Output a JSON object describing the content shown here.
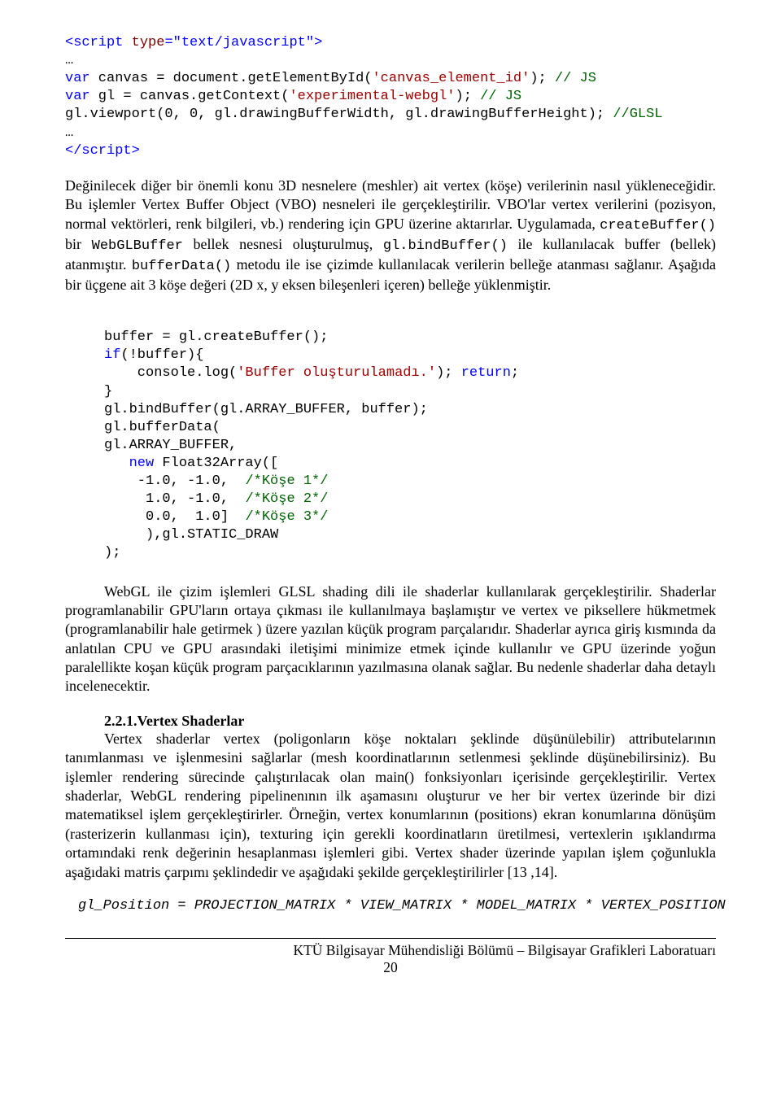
{
  "code1": {
    "l1a": "<script",
    "l1b": " type",
    "l1c": "=",
    "l1d": "\"text/javascript\"",
    "l1e": ">",
    "l2": "…",
    "l3a": "var",
    "l3b": " canvas = document.getElementById(",
    "l3c": "'canvas_element_id'",
    "l3d": "); ",
    "l3e": "// JS",
    "l4a": "var",
    "l4b": " gl = canvas.getContext(",
    "l4c": "'experimental-webgl'",
    "l4d": "); ",
    "l4e": "// JS",
    "l5a": "gl.viewport(0, 0, gl.drawingBufferWidth, gl.drawingBufferHeight); ",
    "l5b": "//GLSL",
    "l6": "…",
    "l7a": "</script",
    "l7b": ">"
  },
  "para1": {
    "pre": "        Değinilecek diğer bir önemli konu 3D nesnelere (meshler) ait vertex (köşe) verilerinin nasıl yükleneceğidir. Bu işlemler Vertex Buffer Object (VBO) nesneleri ile gerçekleştirilir. VBO'lar vertex verilerini (pozisyon, normal vektörleri, renk bilgileri, vb.) rendering için GPU üzerine aktarırlar. Uygulamada, ",
    "m1": "createBuffer()",
    "mid1": " bir ",
    "m2": "WebGLBuffer",
    "mid2": " bellek nesnesi oluşturulmuş, ",
    "m3": "gl.bindBuffer()",
    "mid3": " ile kullanılacak buffer (bellek)  atanmıştır. ",
    "m4": "bufferData()",
    "post": " metodu ile ise çizimde kullanılacak verilerin belleğe atanması sağlanır. Aşağıda bir üçgene ait 3 köşe değeri (2D x, y eksen bileşenleri içeren) belleğe yüklenmiştir."
  },
  "code2": {
    "l1": "buffer = gl.createBuffer();",
    "l2a": "if",
    "l2b": "(!buffer){",
    "l3a": "    console.log(",
    "l3b": "'Buffer oluşturulamadı.'",
    "l3c": "); ",
    "l3d": "return",
    "l3e": ";",
    "l4": "}",
    "l5": "gl.bindBuffer(gl.ARRAY_BUFFER, buffer);",
    "l6": "gl.bufferData(",
    "l7": "gl.ARRAY_BUFFER,",
    "l8a": "   new",
    "l8b": " Float32Array([",
    "l9a": "    -1.0, -1.0,  ",
    "l9b": "/*Köşe 1*/",
    "l10a": "     1.0, -1.0,  ",
    "l10b": "/*Köşe 2*/",
    "l11a": "     0.0,  1.0]  ",
    "l11b": "/*Köşe 3*/",
    "l12": "     ),gl.STATIC_DRAW",
    "l13": ");"
  },
  "para2": "WebGL ile çizim işlemleri GLSL shading dili ile shaderlar kullanılarak gerçekleştirilir. Shaderlar programlanabilir GPU'ların ortaya çıkması ile kullanılmaya başlamıştır ve vertex ve piksellere hükmetmek (programlanabilir hale getirmek ) üzere yazılan küçük program parçalarıdır. Shaderlar ayrıca giriş kısmında da anlatılan CPU ve GPU arasındaki iletişimi minimize etmek içinde kullanılır ve GPU üzerinde yoğun paralellikte koşan küçük program parçacıklarının yazılmasına olanak sağlar. Bu nedenle shaderlar daha detaylı incelenecektir.",
  "heading": "2.2.1.Vertex Shaderlar",
  "para3": "Vertex shaderlar vertex (poligonların köşe noktaları şeklinde düşünülebilir) attributelarının tanımlanması ve işlenmesini sağlarlar (mesh koordinatlarının setlenmesi şeklinde düşünebilirsiniz). Bu işlemler rendering sürecinde çalıştırılacak olan main() fonksiyonları içerisinde gerçekleştirilir. Vertex shaderlar, WebGL rendering pipelinenının ilk aşamasını oluşturur ve her bir vertex üzerinde bir dizi matematiksel işlem gerçekleştirirler. Örneğin, vertex konumlarının (positions) ekran konumlarına dönüşüm (rasterizerin kullanması için), texturing için gerekli koordinatların üretilmesi, vertexlerin ışıklandırma ortamındaki renk değerinin hesaplanması işlemleri gibi. Vertex shader üzerinde yapılan işlem çoğunlukla aşağıdaki matris çarpımı şeklindedir ve aşağıdaki şekilde gerçekleştirilirler [13 ,14].",
  "code3": "gl_Position = PROJECTION_MATRIX * VIEW_MATRIX * MODEL_MATRIX * VERTEX_POSITION",
  "footer": "KTÜ Bilgisayar Mühendisliği Bölümü – Bilgisayar Grafikleri Laboratuarı",
  "pagenum": "20"
}
